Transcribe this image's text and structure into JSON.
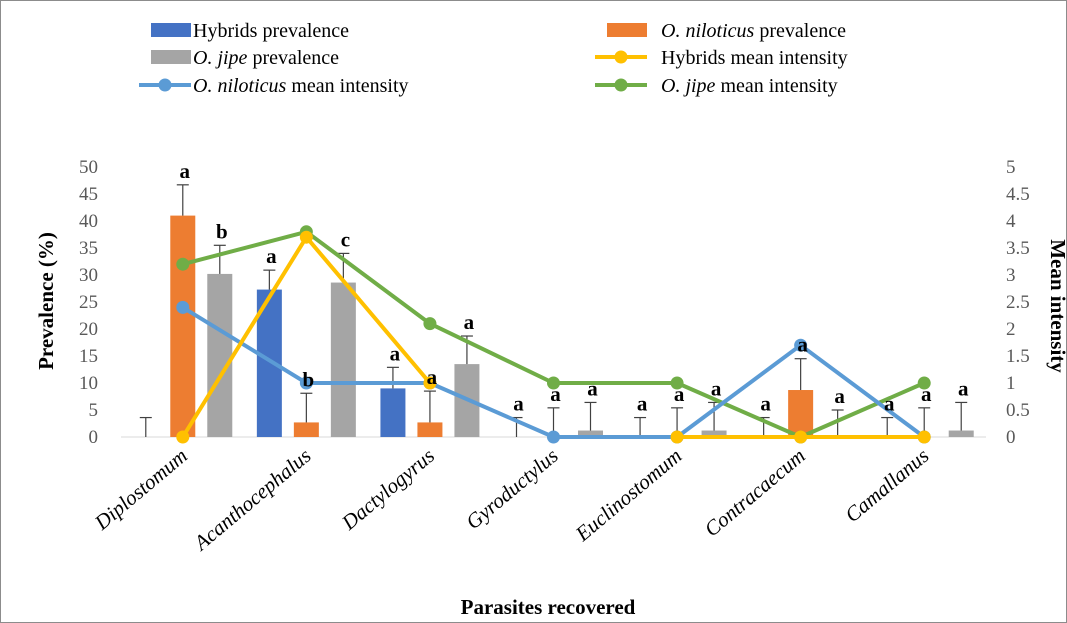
{
  "chart_data": {
    "type": "bar",
    "xlabel": "Parasites recovered",
    "ylabel": "Prevalence (%)",
    "y2label": "Mean intensity",
    "ylim": [
      0,
      50
    ],
    "y2lim": [
      0,
      5
    ],
    "yticks": [
      "0",
      "5",
      "10",
      "15",
      "20",
      "25",
      "30",
      "35",
      "40",
      "45",
      "50"
    ],
    "y2ticks": [
      "0",
      "0.5",
      "1",
      "1.5",
      "2",
      "2.5",
      "3",
      "3.5",
      "4",
      "4.5",
      "5"
    ],
    "categories": [
      "Diplostomum",
      "Acanthocephalus",
      "Dactylogyrus",
      "Gyroductylus",
      "Euclinostomum",
      "Contracaecum",
      "Camallanus"
    ],
    "bar_series": [
      {
        "name": "Hybrids prevalence",
        "color": "#4472C4",
        "values": [
          0,
          27.3,
          9,
          0,
          0,
          0,
          0
        ],
        "error": [
          3.6,
          3.6,
          3.9,
          3.6,
          3.6,
          3.6,
          3.6
        ]
      },
      {
        "name": "O. niloticus prevalence",
        "color": "#ED7D31",
        "values": [
          41,
          2.7,
          2.7,
          0,
          0,
          8.7,
          0
        ],
        "error": [
          5.7,
          5.4,
          5.8,
          5.4,
          5.4,
          5.8,
          5.4
        ]
      },
      {
        "name": "O. jipe prevalence",
        "color": "#A5A5A5",
        "values": [
          30.2,
          28.6,
          13.5,
          1.2,
          1.2,
          0,
          1.2
        ],
        "error": [
          5.3,
          5.4,
          5.2,
          5.2,
          5.2,
          5.0,
          5.2
        ]
      }
    ],
    "line_series": [
      {
        "name": "Hybrids mean intensity",
        "color": "#FFC000",
        "axis": "right",
        "values": [
          0,
          3.7,
          1,
          null,
          0,
          0,
          0
        ]
      },
      {
        "name": "O. niloticus mean intensity",
        "color": "#5B9BD5",
        "axis": "right",
        "values": [
          2.4,
          1,
          1,
          0,
          0,
          1.7,
          0
        ]
      },
      {
        "name": "O. jipe mean intensity",
        "color": "#70AD47",
        "axis": "right",
        "values": [
          3.2,
          3.8,
          2.1,
          1,
          1,
          0,
          1
        ]
      }
    ],
    "significance_letters": [
      [
        "",
        "a",
        "b"
      ],
      [
        "a",
        "b",
        "c"
      ],
      [
        "a",
        "a",
        "a"
      ],
      [
        "a",
        "a",
        "a"
      ],
      [
        "a",
        "a",
        "a"
      ],
      [
        "a",
        "a",
        "a"
      ],
      [
        "a",
        "a",
        "a"
      ]
    ],
    "legend": [
      {
        "prefix": "Hybrids",
        "species": "",
        "suffix": " prevalence",
        "kind": "bar",
        "color": "#4472C4"
      },
      {
        "prefix": "",
        "species": "O. niloticus",
        "suffix": " prevalence",
        "kind": "bar",
        "color": "#ED7D31"
      },
      {
        "prefix": "",
        "species": "O. jipe",
        "suffix": " prevalence",
        "kind": "bar",
        "color": "#A5A5A5"
      },
      {
        "prefix": "Hybrids",
        "species": "",
        "suffix": " mean intensity",
        "kind": "line",
        "color": "#FFC000"
      },
      {
        "prefix": "",
        "species": "O. niloticus",
        "suffix": " mean intensity",
        "kind": "line",
        "color": "#5B9BD5"
      },
      {
        "prefix": "",
        "species": "O. jipe",
        "suffix": " mean intensity",
        "kind": "line",
        "color": "#70AD47"
      }
    ],
    "legend_position": "top"
  }
}
